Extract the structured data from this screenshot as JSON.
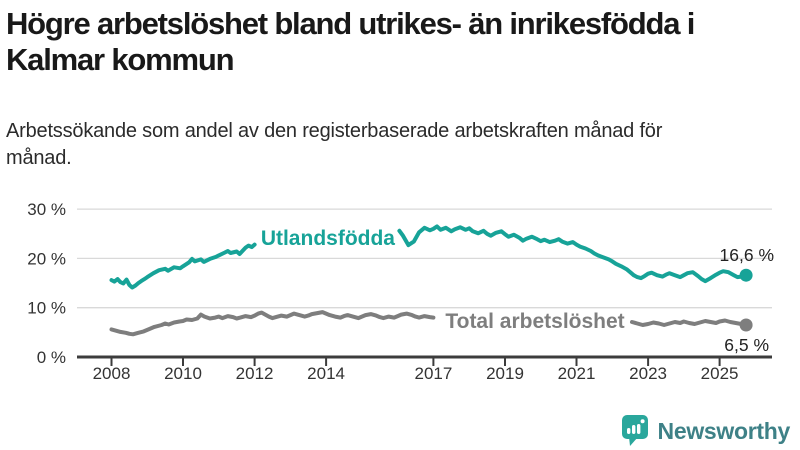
{
  "header": {
    "title": "Högre arbetslöshet bland utrikes- än inrikesfödda i Kalmar kommun",
    "subtitle": "Arbetssökande som andel av den registerbaserade arbetskraften månad för månad."
  },
  "footer": {
    "brand": "Newsworthy",
    "logo_icon": "newsworthy-bar-chart-speech-bubble-icon"
  },
  "colors": {
    "teal": "#17a398",
    "gray": "#7e7e7e",
    "axis": "#3c3c3c",
    "grid": "#d9d9d9",
    "tick_text": "#333333",
    "end_label_text": "#222222",
    "title_text": "#191919",
    "logo_icon": "#2aa79c",
    "logo_text": "#3e8187"
  },
  "chart_data": {
    "type": "line",
    "title": "Högre arbetslöshet bland utrikes- än inrikesfödda i Kalmar kommun",
    "subtitle": "Arbetssökande som andel av den registerbaserade arbetskraften månad för månad.",
    "xlabel": "",
    "ylabel": "",
    "x_unit": "year (monthly observations)",
    "xlim": [
      2007.8,
      2026.2
    ],
    "ylim": [
      0,
      30
    ],
    "grid": "horizontal gridlines at 10/20/30 %",
    "legend_position": "inline labels on lines; line gaps where labels sit",
    "yticks": [
      {
        "value": 0,
        "label": "0 %"
      },
      {
        "value": 10,
        "label": "10 %"
      },
      {
        "value": 20,
        "label": "20 %"
      },
      {
        "value": 30,
        "label": "30 %"
      }
    ],
    "xticks": [
      {
        "value": 2008,
        "label": "2008"
      },
      {
        "value": 2010,
        "label": "2010"
      },
      {
        "value": 2012,
        "label": "2012"
      },
      {
        "value": 2014,
        "label": "2014"
      },
      {
        "value": 2017,
        "label": "2017"
      },
      {
        "value": 2019,
        "label": "2019"
      },
      {
        "value": 2021,
        "label": "2021"
      },
      {
        "value": 2023,
        "label": "2023"
      },
      {
        "value": 2025,
        "label": "2025"
      }
    ],
    "series": [
      {
        "name": "Utlandsfödda",
        "color": "#17a398",
        "end_value": 16.6,
        "end_label": "16,6 %",
        "end_label_side": "above",
        "label_pos": {
          "year": 2014.05,
          "value": 24.1
        },
        "segments": [
          [
            [
              2008.0,
              15.6
            ],
            [
              2008.08,
              15.3
            ],
            [
              2008.17,
              15.8
            ],
            [
              2008.25,
              15.2
            ],
            [
              2008.33,
              14.9
            ],
            [
              2008.42,
              15.7
            ],
            [
              2008.5,
              14.6
            ],
            [
              2008.58,
              14.1
            ],
            [
              2008.67,
              14.5
            ],
            [
              2008.75,
              15.0
            ],
            [
              2008.83,
              15.4
            ],
            [
              2008.92,
              15.8
            ],
            [
              2009.0,
              16.2
            ],
            [
              2009.17,
              17.0
            ],
            [
              2009.33,
              17.6
            ],
            [
              2009.5,
              17.9
            ],
            [
              2009.58,
              17.5
            ],
            [
              2009.75,
              18.2
            ],
            [
              2009.92,
              18.0
            ],
            [
              2010.0,
              18.4
            ],
            [
              2010.17,
              19.2
            ],
            [
              2010.25,
              19.9
            ],
            [
              2010.33,
              19.4
            ],
            [
              2010.5,
              19.8
            ],
            [
              2010.58,
              19.3
            ],
            [
              2010.75,
              19.9
            ],
            [
              2010.92,
              20.3
            ],
            [
              2011.0,
              20.6
            ],
            [
              2011.17,
              21.2
            ],
            [
              2011.25,
              21.5
            ],
            [
              2011.33,
              21.1
            ],
            [
              2011.5,
              21.4
            ],
            [
              2011.58,
              20.9
            ],
            [
              2011.75,
              22.2
            ],
            [
              2011.83,
              22.6
            ],
            [
              2011.92,
              22.3
            ],
            [
              2012.0,
              22.8
            ]
          ],
          [
            [
              2016.05,
              25.6
            ],
            [
              2016.15,
              24.6
            ],
            [
              2016.3,
              22.7
            ],
            [
              2016.45,
              23.4
            ],
            [
              2016.6,
              25.3
            ],
            [
              2016.75,
              26.2
            ],
            [
              2016.9,
              25.7
            ],
            [
              2017.0,
              26.0
            ],
            [
              2017.1,
              26.5
            ],
            [
              2017.2,
              25.8
            ],
            [
              2017.35,
              26.2
            ],
            [
              2017.5,
              25.5
            ],
            [
              2017.6,
              25.9
            ],
            [
              2017.75,
              26.3
            ],
            [
              2017.9,
              25.8
            ],
            [
              2018.0,
              26.1
            ],
            [
              2018.1,
              25.5
            ],
            [
              2018.25,
              25.1
            ],
            [
              2018.4,
              25.6
            ],
            [
              2018.5,
              25.0
            ],
            [
              2018.6,
              24.6
            ],
            [
              2018.75,
              25.2
            ],
            [
              2018.9,
              25.5
            ],
            [
              2019.0,
              24.9
            ],
            [
              2019.1,
              24.4
            ],
            [
              2019.25,
              24.8
            ],
            [
              2019.4,
              24.2
            ],
            [
              2019.5,
              23.6
            ],
            [
              2019.6,
              24.0
            ],
            [
              2019.75,
              24.4
            ],
            [
              2019.9,
              23.9
            ],
            [
              2020.0,
              23.5
            ],
            [
              2020.1,
              23.8
            ],
            [
              2020.25,
              23.3
            ],
            [
              2020.4,
              23.6
            ],
            [
              2020.5,
              23.9
            ],
            [
              2020.6,
              23.4
            ],
            [
              2020.75,
              23.0
            ],
            [
              2020.9,
              23.3
            ],
            [
              2021.0,
              22.8
            ],
            [
              2021.1,
              22.4
            ],
            [
              2021.25,
              22.0
            ],
            [
              2021.4,
              21.5
            ],
            [
              2021.5,
              21.0
            ],
            [
              2021.6,
              20.6
            ],
            [
              2021.75,
              20.2
            ],
            [
              2021.9,
              19.8
            ],
            [
              2022.0,
              19.4
            ],
            [
              2022.1,
              18.9
            ],
            [
              2022.25,
              18.4
            ],
            [
              2022.4,
              17.8
            ],
            [
              2022.5,
              17.2
            ],
            [
              2022.6,
              16.6
            ],
            [
              2022.7,
              16.2
            ],
            [
              2022.8,
              16.0
            ],
            [
              2022.9,
              16.4
            ],
            [
              2023.0,
              16.9
            ],
            [
              2023.1,
              17.1
            ],
            [
              2023.25,
              16.6
            ],
            [
              2023.4,
              16.3
            ],
            [
              2023.5,
              16.7
            ],
            [
              2023.6,
              17.0
            ],
            [
              2023.75,
              16.6
            ],
            [
              2023.9,
              16.2
            ],
            [
              2024.0,
              16.6
            ],
            [
              2024.1,
              17.0
            ],
            [
              2024.25,
              17.2
            ],
            [
              2024.4,
              16.4
            ],
            [
              2024.5,
              15.8
            ],
            [
              2024.6,
              15.4
            ],
            [
              2024.75,
              16.0
            ],
            [
              2024.9,
              16.7
            ],
            [
              2025.0,
              17.1
            ],
            [
              2025.1,
              17.4
            ],
            [
              2025.25,
              17.2
            ],
            [
              2025.4,
              16.6
            ],
            [
              2025.5,
              16.2
            ],
            [
              2025.6,
              16.3
            ],
            [
              2025.74,
              16.6
            ]
          ]
        ]
      },
      {
        "name": "Total arbetslöshet",
        "color": "#7e7e7e",
        "end_value": 6.5,
        "end_label": "6,5 %",
        "end_label_side": "below",
        "label_pos": {
          "year": 2019.84,
          "value": 7.3
        },
        "segments": [
          [
            [
              2008.0,
              5.6
            ],
            [
              2008.1,
              5.4
            ],
            [
              2008.25,
              5.1
            ],
            [
              2008.4,
              4.9
            ],
            [
              2008.5,
              4.7
            ],
            [
              2008.6,
              4.6
            ],
            [
              2008.75,
              4.9
            ],
            [
              2008.9,
              5.2
            ],
            [
              2009.0,
              5.5
            ],
            [
              2009.2,
              6.1
            ],
            [
              2009.4,
              6.5
            ],
            [
              2009.5,
              6.8
            ],
            [
              2009.6,
              6.6
            ],
            [
              2009.75,
              7.0
            ],
            [
              2009.9,
              7.2
            ],
            [
              2010.0,
              7.3
            ],
            [
              2010.1,
              7.6
            ],
            [
              2010.25,
              7.5
            ],
            [
              2010.4,
              7.8
            ],
            [
              2010.5,
              8.6
            ],
            [
              2010.6,
              8.2
            ],
            [
              2010.75,
              7.8
            ],
            [
              2010.9,
              8.0
            ],
            [
              2011.0,
              8.2
            ],
            [
              2011.1,
              7.9
            ],
            [
              2011.25,
              8.3
            ],
            [
              2011.4,
              8.1
            ],
            [
              2011.5,
              7.8
            ],
            [
              2011.6,
              8.0
            ],
            [
              2011.75,
              8.3
            ],
            [
              2011.9,
              8.1
            ],
            [
              2012.0,
              8.4
            ],
            [
              2012.1,
              8.8
            ],
            [
              2012.2,
              9.0
            ],
            [
              2012.3,
              8.6
            ],
            [
              2012.4,
              8.2
            ],
            [
              2012.5,
              7.9
            ],
            [
              2012.6,
              8.1
            ],
            [
              2012.75,
              8.4
            ],
            [
              2012.9,
              8.2
            ],
            [
              2013.0,
              8.5
            ],
            [
              2013.1,
              8.8
            ],
            [
              2013.25,
              8.5
            ],
            [
              2013.4,
              8.2
            ],
            [
              2013.5,
              8.4
            ],
            [
              2013.6,
              8.7
            ],
            [
              2013.75,
              8.9
            ],
            [
              2013.9,
              9.1
            ],
            [
              2014.0,
              8.8
            ],
            [
              2014.1,
              8.5
            ],
            [
              2014.25,
              8.2
            ],
            [
              2014.4,
              8.0
            ],
            [
              2014.5,
              8.3
            ],
            [
              2014.6,
              8.5
            ],
            [
              2014.75,
              8.2
            ],
            [
              2014.9,
              7.9
            ],
            [
              2015.0,
              8.2
            ],
            [
              2015.1,
              8.5
            ],
            [
              2015.25,
              8.7
            ],
            [
              2015.4,
              8.4
            ],
            [
              2015.5,
              8.1
            ],
            [
              2015.6,
              7.9
            ],
            [
              2015.75,
              8.2
            ],
            [
              2015.9,
              8.0
            ],
            [
              2016.0,
              8.3
            ],
            [
              2016.1,
              8.6
            ],
            [
              2016.25,
              8.8
            ],
            [
              2016.4,
              8.5
            ],
            [
              2016.5,
              8.2
            ],
            [
              2016.6,
              8.0
            ],
            [
              2016.75,
              8.3
            ],
            [
              2016.9,
              8.1
            ],
            [
              2017.0,
              8.0
            ]
          ],
          [
            [
              2022.55,
              7.1
            ],
            [
              2022.7,
              6.8
            ],
            [
              2022.85,
              6.5
            ],
            [
              2023.0,
              6.7
            ],
            [
              2023.15,
              7.0
            ],
            [
              2023.3,
              6.8
            ],
            [
              2023.45,
              6.5
            ],
            [
              2023.6,
              6.8
            ],
            [
              2023.75,
              7.1
            ],
            [
              2023.9,
              6.9
            ],
            [
              2024.0,
              7.2
            ],
            [
              2024.15,
              6.9
            ],
            [
              2024.3,
              6.7
            ],
            [
              2024.45,
              7.0
            ],
            [
              2024.6,
              7.3
            ],
            [
              2024.75,
              7.1
            ],
            [
              2024.9,
              6.9
            ],
            [
              2025.0,
              7.2
            ],
            [
              2025.15,
              7.4
            ],
            [
              2025.3,
              7.1
            ],
            [
              2025.45,
              6.9
            ],
            [
              2025.6,
              6.7
            ],
            [
              2025.74,
              6.5
            ]
          ]
        ]
      }
    ]
  }
}
